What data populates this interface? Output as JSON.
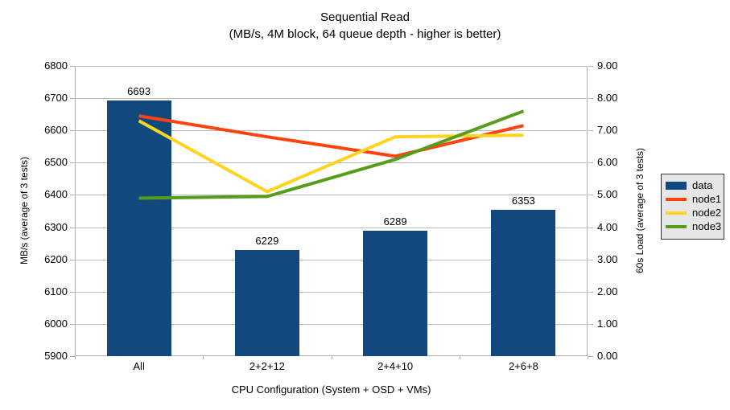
{
  "title": "Sequential Read",
  "subtitle": "(MB/s, 4M block, 64 queue depth - higher is better)",
  "chart_data": {
    "type": "combo-bar-line",
    "categories": [
      "All",
      "2+2+12",
      "2+4+10",
      "2+6+8"
    ],
    "xlabel": "CPU Configuration (System + OSD + VMs)",
    "left_axis": {
      "label": "MB/s (average of 3 tests)",
      "min": 5900,
      "max": 6800,
      "step": 100
    },
    "right_axis": {
      "label": "60s Load (average of 3 tests)",
      "min": 0,
      "max": 9,
      "step": 1
    },
    "bar_series": {
      "name": "data",
      "axis": "left",
      "color": "#11497f",
      "values": [
        6693,
        6229,
        6289,
        6353
      ]
    },
    "line_series": [
      {
        "name": "node1",
        "axis": "right",
        "color": "#ff420e",
        "values": [
          7.45,
          6.8,
          6.2,
          7.15
        ]
      },
      {
        "name": "node2",
        "axis": "right",
        "color": "#ffd320",
        "values": [
          7.3,
          5.1,
          6.8,
          6.85
        ]
      },
      {
        "name": "node3",
        "axis": "right",
        "color": "#579d1c",
        "values": [
          4.9,
          4.95,
          6.1,
          7.6
        ]
      }
    ],
    "legend": {
      "position": "right",
      "entries": [
        "data",
        "node1",
        "node2",
        "node3"
      ]
    },
    "grid": "horizontal-major"
  },
  "colors": {
    "grid": "#b9b9b9",
    "axis": "#b0b0b0",
    "legend_bg": "#e6e6e6",
    "legend_border": "#333333",
    "text": "#000000",
    "background": "#ffffff"
  }
}
